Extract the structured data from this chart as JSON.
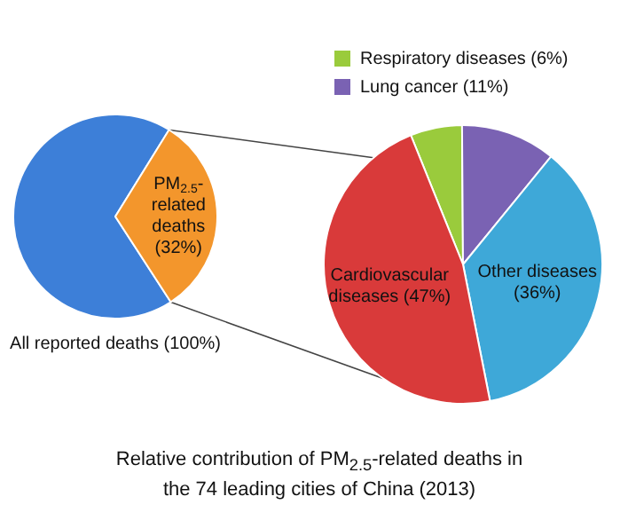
{
  "chart_data": [
    {
      "type": "pie",
      "title": "Relative contribution of PM$_{2.5}$-related deaths in the 74 leading cities of China (2013)",
      "categories": [
        "All reported deaths (100%)",
        "PM$_{2.5}$-related deaths (32%)"
      ],
      "values": [
        68,
        32
      ],
      "colors": [
        "#3d7fd8",
        "#f3962c"
      ]
    },
    {
      "type": "pie",
      "categories": [
        "Respiratory diseases (6%)",
        "Lung cancer (11%)",
        "Other diseases (36%)",
        "Cardiovascular diseases (47%)"
      ],
      "values": [
        6,
        11,
        36,
        47
      ],
      "colors": [
        "#9acb3c",
        "#7a62b3",
        "#3ea8d8",
        "#d93a3a"
      ],
      "legend": "top"
    }
  ]
}
